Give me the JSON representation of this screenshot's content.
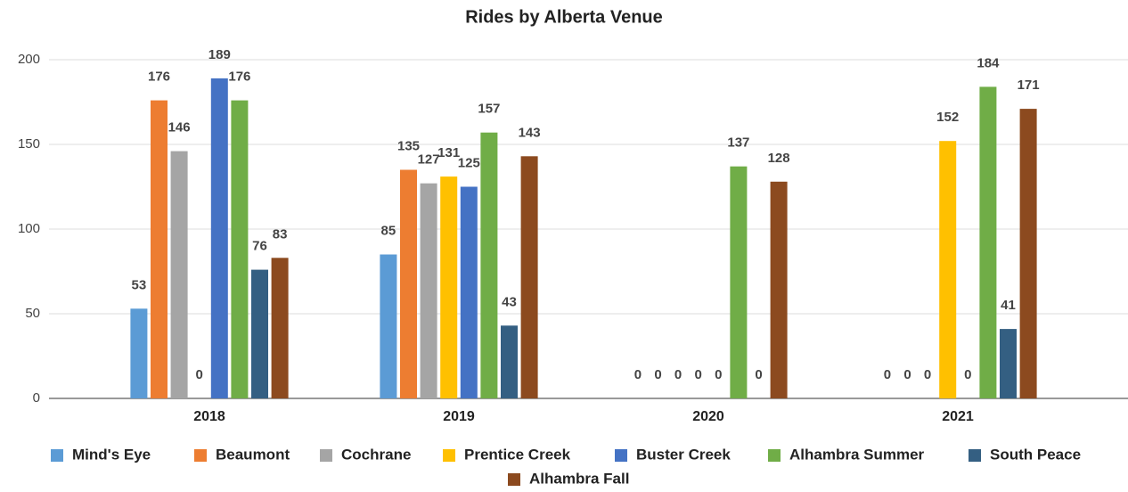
{
  "chart_data": {
    "type": "bar",
    "title": "Rides by Alberta Venue",
    "categories": [
      "2018",
      "2019",
      "2020",
      "2021"
    ],
    "series": [
      {
        "name": "Mind's Eye",
        "color": "#5b9bd5",
        "values": [
          53,
          85,
          0,
          0
        ]
      },
      {
        "name": "Beaumont",
        "color": "#ed7d31",
        "values": [
          176,
          135,
          0,
          0
        ]
      },
      {
        "name": "Cochrane",
        "color": "#a5a5a5",
        "values": [
          146,
          127,
          0,
          0
        ]
      },
      {
        "name": "Prentice Creek",
        "color": "#ffc000",
        "values": [
          0,
          131,
          0,
          152
        ]
      },
      {
        "name": "Buster Creek",
        "color": "#4472c4",
        "values": [
          189,
          125,
          0,
          0
        ]
      },
      {
        "name": "Alhambra Summer",
        "color": "#70ad47",
        "values": [
          176,
          157,
          137,
          184
        ]
      },
      {
        "name": "South Peace",
        "color": "#345f82",
        "values": [
          76,
          43,
          0,
          41
        ]
      },
      {
        "name": "Alhambra Fall",
        "color": "#8c4a1f",
        "values": [
          83,
          143,
          128,
          171
        ]
      }
    ],
    "ylim": [
      0,
      200
    ],
    "yticks": [
      0,
      50,
      100,
      150,
      200
    ],
    "grid": true,
    "legend": "bottom"
  }
}
